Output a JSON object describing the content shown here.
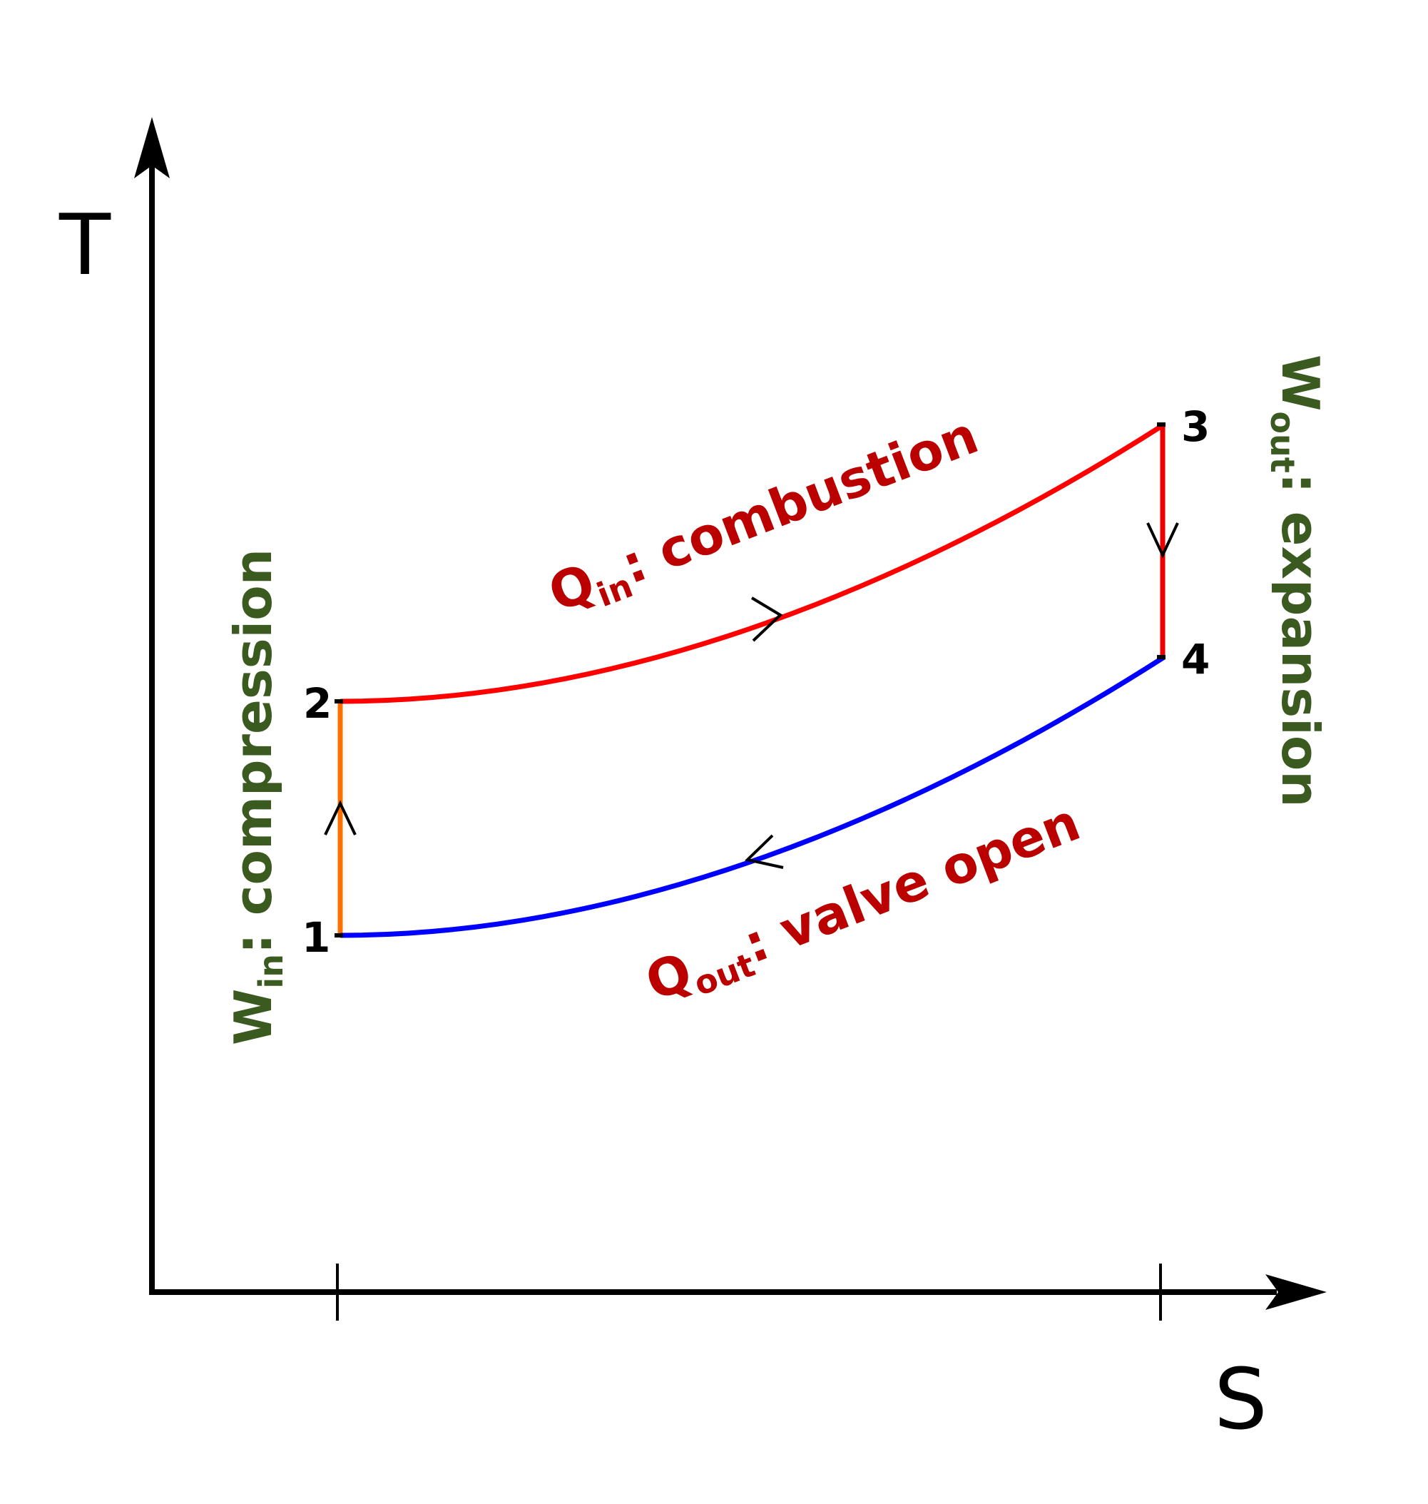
{
  "axes": {
    "y_label": "T",
    "x_label": "S"
  },
  "points": {
    "p1": "1",
    "p2": "2",
    "p3": "3",
    "p4": "4"
  },
  "heat_in": {
    "symbol": "Q",
    "subscript": "in",
    "text": ": combustion"
  },
  "heat_out": {
    "symbol": "Q",
    "subscript": "out",
    "text": ": valve open"
  },
  "work_in": {
    "symbol": "W",
    "subscript": "in",
    "text": ": compression"
  },
  "work_out": {
    "symbol": "W",
    "subscript": "out",
    "text": ": expansion"
  },
  "colors": {
    "compression": "#ff7000",
    "combustion": "#ff0000",
    "expansion": "#ee0000",
    "valve_open": "#0000ff",
    "heat_label": "#bb0000",
    "work_label": "#3a5a1f",
    "axes": "#000000"
  }
}
